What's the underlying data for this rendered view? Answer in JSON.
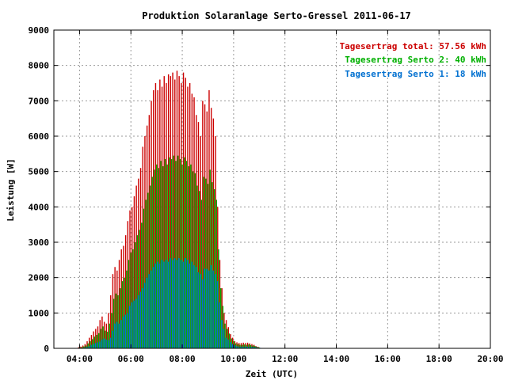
{
  "chart_data": {
    "type": "bar",
    "title": "Produktion Solaranlage Serto-Gressel 2011-06-17",
    "xlabel": "Zeit (UTC)",
    "ylabel": "Leistung [W]",
    "xlim": [
      "03:00",
      "20:00"
    ],
    "ylim": [
      0,
      9000
    ],
    "x_ticks": [
      "04:00",
      "06:00",
      "08:00",
      "10:00",
      "12:00",
      "14:00",
      "16:00",
      "18:00",
      "20:00"
    ],
    "y_ticks": [
      "0",
      "1000",
      "2000",
      "3000",
      "4000",
      "5000",
      "6000",
      "7000",
      "8000",
      "9000"
    ],
    "grid": true,
    "legend_position": "top-right",
    "legend": [
      {
        "label": "Tagesertrag total: 57.56 kWh",
        "color": "#cc0000"
      },
      {
        "label": "Tagesertrag Serto 2: 40 kWh",
        "color": "#00b000"
      },
      {
        "label": "Tagesertrag Serto 1: 18 kWh",
        "color": "#0070d0"
      }
    ],
    "x_start": "04:00",
    "x_step_minutes": 5,
    "series": [
      {
        "name": "total",
        "color": "#cc0000",
        "values": [
          30,
          50,
          80,
          120,
          200,
          300,
          380,
          480,
          550,
          620,
          800,
          900,
          750,
          700,
          1000,
          1500,
          2100,
          2300,
          2200,
          2500,
          2800,
          2900,
          3200,
          3600,
          3900,
          4000,
          4300,
          4600,
          4800,
          5100,
          5700,
          6000,
          6300,
          6600,
          7000,
          7300,
          7500,
          7300,
          7600,
          7400,
          7700,
          7500,
          7750,
          7700,
          7800,
          7600,
          7850,
          7700,
          7500,
          7800,
          7650,
          7400,
          7500,
          7200,
          7100,
          6600,
          6400,
          6000,
          7000,
          6900,
          6700,
          7300,
          6800,
          6500,
          6000,
          4000,
          2500,
          1700,
          1000,
          800,
          600,
          400,
          300,
          200,
          170,
          150,
          150,
          160,
          150,
          160,
          140,
          120,
          100,
          60,
          40
        ]
      },
      {
        "name": "Serto 2",
        "color": "#00b000",
        "values": [
          20,
          35,
          55,
          80,
          140,
          200,
          260,
          330,
          380,
          430,
          550,
          620,
          500,
          470,
          700,
          1000,
          1400,
          1550,
          1500,
          1700,
          1900,
          2000,
          2200,
          2500,
          2700,
          2800,
          3000,
          3200,
          3350,
          3550,
          3950,
          4200,
          4400,
          4600,
          4850,
          5050,
          5200,
          5100,
          5300,
          5150,
          5350,
          5200,
          5400,
          5350,
          5450,
          5300,
          5450,
          5350,
          5200,
          5400,
          5300,
          5150,
          5200,
          5000,
          4950,
          4600,
          4450,
          4200,
          4850,
          4800,
          4650,
          5050,
          4700,
          4500,
          4200,
          2800,
          1700,
          1200,
          700,
          550,
          420,
          280,
          210,
          140,
          120,
          100,
          100,
          110,
          100,
          110,
          95,
          80,
          65,
          40,
          25
        ]
      },
      {
        "name": "Serto 1",
        "color": "#0070d0",
        "values": [
          10,
          15,
          25,
          40,
          60,
          100,
          120,
          150,
          170,
          190,
          250,
          280,
          250,
          230,
          300,
          500,
          700,
          750,
          700,
          800,
          900,
          950,
          1000,
          1200,
          1300,
          1350,
          1400,
          1500,
          1600,
          1700,
          1850,
          2000,
          2100,
          2200,
          2300,
          2400,
          2450,
          2400,
          2500,
          2450,
          2500,
          2450,
          2550,
          2500,
          2550,
          2500,
          2550,
          2500,
          2450,
          2550,
          2500,
          2400,
          2450,
          2350,
          2300,
          2150,
          2100,
          1950,
          2250,
          2250,
          2200,
          2350,
          2200,
          2100,
          1900,
          1300,
          800,
          550,
          300,
          250,
          180,
          120,
          90,
          60,
          50,
          50,
          50,
          50,
          50,
          50,
          45,
          40,
          35,
          20,
          15
        ]
      }
    ]
  }
}
